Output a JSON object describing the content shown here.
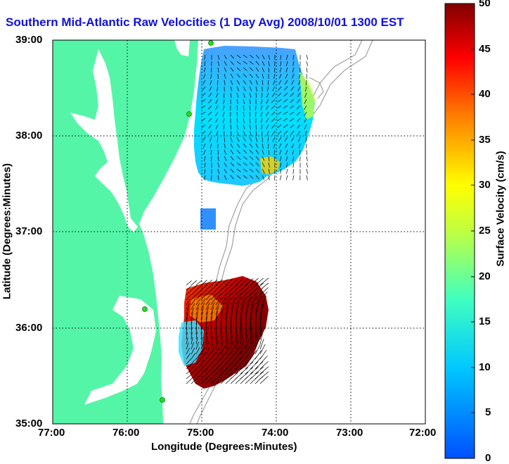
{
  "title": "Southern Mid-Atlantic Raw Velocities (1 Day Avg) 2008/10/01 1300 EST",
  "xlabel": "Longitude (Degrees:Minutes)",
  "ylabel": "Latitude (Degrees:Minutes)",
  "colorbar_label": "Surface Velocity (cm/s)",
  "x_ticks": [
    "77:00",
    "76:00",
    "75:00",
    "74:00",
    "73:00",
    "72:00"
  ],
  "y_ticks": [
    "39:00",
    "38:00",
    "37:00",
    "36:00",
    "35:00"
  ],
  "colorbar_ticks": [
    "50",
    "45",
    "40",
    "35",
    "30",
    "25",
    "20",
    "15",
    "10",
    "5",
    "0"
  ],
  "colors": {
    "land": "#55f5a8",
    "ocean": "#ffffff",
    "title": "#1010e0",
    "bathymetry": "#a0a0a0",
    "station": "#22dd22"
  },
  "map_data": {
    "lon_range": [
      -77,
      -72
    ],
    "lat_range": [
      35,
      39
    ],
    "colormap": "jet",
    "color_range": [
      0,
      50
    ]
  }
}
